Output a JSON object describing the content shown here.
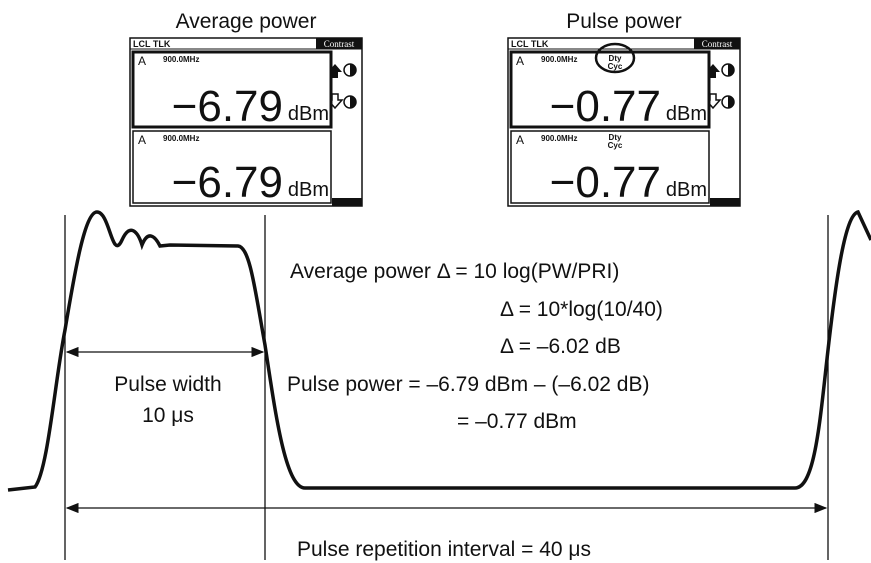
{
  "screens": [
    {
      "title": "Average power",
      "status": "LCL TLK",
      "button": "Contrast",
      "windows": [
        {
          "channel": "A",
          "frequency": "900.0MHz",
          "value": "−6.79",
          "unit": "dBm"
        },
        {
          "channel": "A",
          "frequency": "900.0MHz",
          "value": "−6.79",
          "unit": "dBm"
        }
      ]
    },
    {
      "title": "Pulse power",
      "status": "LCL TLK",
      "button": "Contrast",
      "windows": [
        {
          "channel": "A",
          "frequency": "900.0MHz",
          "duty": [
            "Dty",
            "Cyc"
          ],
          "value": "−0.77",
          "unit": "dBm"
        },
        {
          "channel": "A",
          "frequency": "900.0MHz",
          "duty": [
            "Dty",
            "Cyc"
          ],
          "value": "−0.77",
          "unit": "dBm"
        }
      ]
    }
  ],
  "formulas": [
    "Average power  Δ = 10 log(PW/PRI)",
    "Δ = 10*log(10/40)",
    "Δ = –6.02 dB",
    "Pulse power = –6.79 dBm – (–6.02 dB)",
    "= –0.77 dBm"
  ],
  "pulse_width": {
    "label": "Pulse width",
    "value": "10 μs"
  },
  "pri_label": "Pulse repetition interval = 40 μs"
}
